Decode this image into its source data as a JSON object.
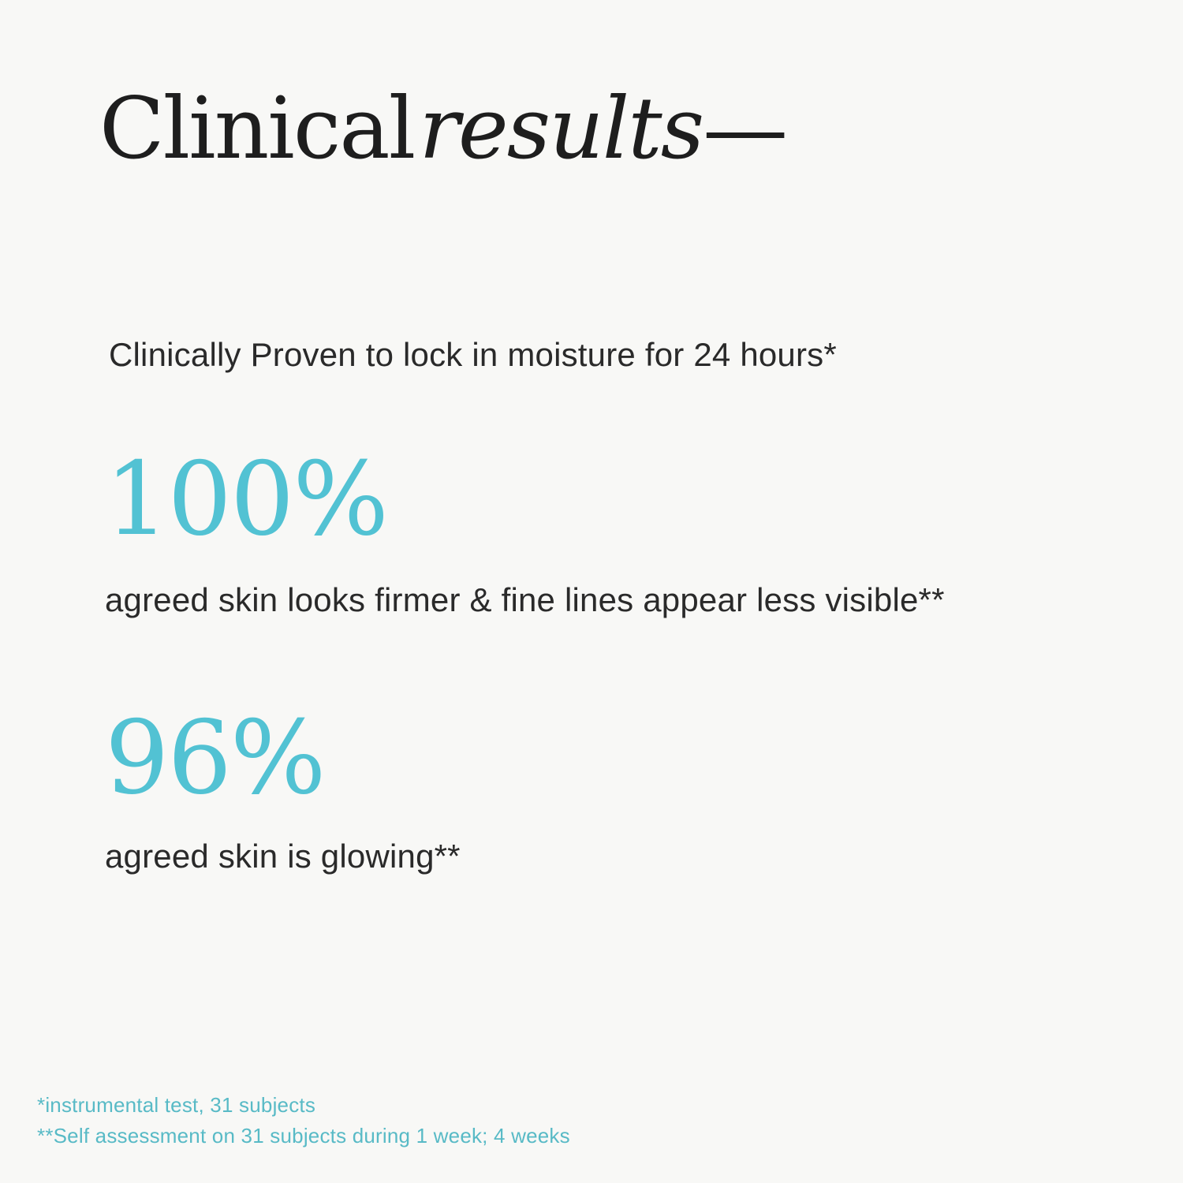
{
  "theme": {
    "background": "#f8f8f6",
    "title_color": "#1e1e1e",
    "body_text_color": "#2a2a2a",
    "accent_color": "#52c2d3",
    "footnote_color": "#58bac6"
  },
  "title": {
    "regular": "Clinical",
    "italic": "results",
    "dash": "—"
  },
  "subtitle": "Clinically Proven to lock in moisture for 24 hours*",
  "stats": [
    {
      "value": "100%",
      "description": "agreed skin looks firmer & fine lines appear less visible**"
    },
    {
      "value": "96%",
      "description": "agreed skin is glowing**"
    }
  ],
  "footnotes": [
    "*instrumental test, 31 subjects",
    "**Self assessment on 31 subjects during 1 week; 4 weeks"
  ]
}
